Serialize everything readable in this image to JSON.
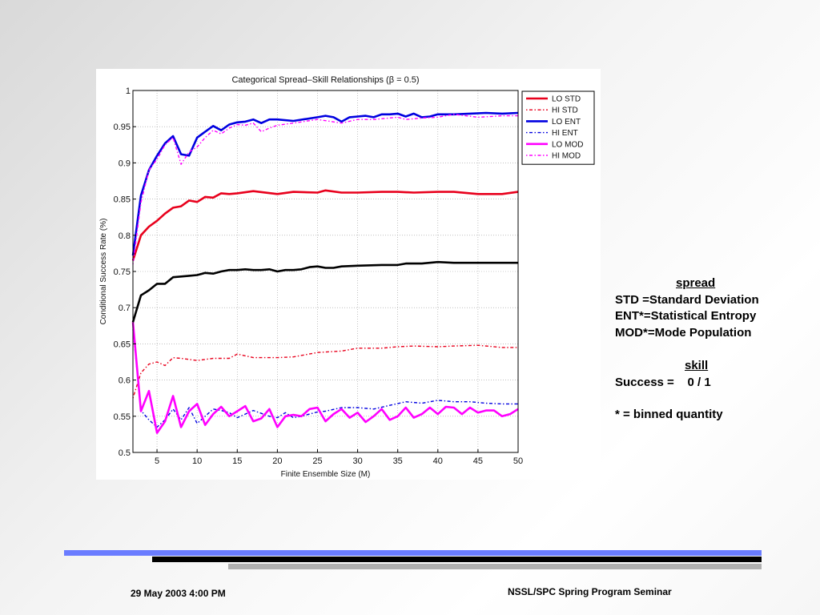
{
  "chart_data": {
    "type": "line",
    "title": "Categorical Spread–Skill Relationships (β = 0.5)",
    "xlabel": "Finite Ensemble Size (M)",
    "ylabel": "Conditional Success Rate (%)",
    "xlim": [
      2,
      50
    ],
    "ylim": [
      0.5,
      1.0
    ],
    "xticks": [
      5,
      10,
      15,
      20,
      25,
      30,
      35,
      40,
      45,
      50
    ],
    "yticks": [
      0.5,
      0.55,
      0.6,
      0.65,
      0.7,
      0.75,
      0.8,
      0.85,
      0.9,
      0.95,
      1
    ],
    "ytick_labels": [
      "0.5",
      "0.55",
      "0.6",
      "0.65",
      "0.7",
      "0.75",
      "0.8",
      "0.85",
      "0.9",
      "0.95",
      "1"
    ],
    "grid": true,
    "legend_position": "outside-right-top",
    "legend": [
      {
        "label": "LO STD",
        "color": "#e8001c",
        "style": "solid"
      },
      {
        "label": "HI STD",
        "color": "#e8001c",
        "style": "dashdot"
      },
      {
        "label": "LO ENT",
        "color": "#0000e0",
        "style": "solid"
      },
      {
        "label": "HI ENT",
        "color": "#0000e0",
        "style": "dashdot"
      },
      {
        "label": "LO MOD",
        "color": "#ff00ff",
        "style": "solid"
      },
      {
        "label": "HI MOD",
        "color": "#ff00ff",
        "style": "dashdot"
      }
    ],
    "series": [
      {
        "color": "#e8001c",
        "style": "solid",
        "x": [
          2,
          3,
          4,
          5,
          6,
          7,
          8,
          9,
          10,
          11,
          12,
          13,
          14,
          15,
          17,
          20,
          22,
          25,
          26,
          28,
          30,
          33,
          35,
          37,
          40,
          42,
          45,
          48,
          50
        ],
        "y": [
          0.765,
          0.8,
          0.812,
          0.82,
          0.83,
          0.838,
          0.84,
          0.848,
          0.846,
          0.853,
          0.852,
          0.858,
          0.857,
          0.858,
          0.861,
          0.857,
          0.86,
          0.859,
          0.862,
          0.859,
          0.859,
          0.86,
          0.86,
          0.859,
          0.86,
          0.86,
          0.857,
          0.857,
          0.86
        ]
      },
      {
        "color": "#e8001c",
        "style": "dashdot",
        "x": [
          2,
          3,
          4,
          5,
          6,
          7,
          8,
          10,
          12,
          14,
          15,
          17,
          20,
          22,
          25,
          28,
          30,
          33,
          35,
          37,
          40,
          42,
          45,
          48,
          50
        ],
        "y": [
          0.575,
          0.61,
          0.622,
          0.625,
          0.62,
          0.631,
          0.63,
          0.627,
          0.63,
          0.63,
          0.636,
          0.631,
          0.631,
          0.632,
          0.638,
          0.64,
          0.644,
          0.644,
          0.646,
          0.647,
          0.646,
          0.647,
          0.648,
          0.645,
          0.645
        ]
      },
      {
        "color": "#0000e0",
        "style": "solid",
        "x": [
          2,
          3,
          4,
          5,
          6,
          7,
          8,
          9,
          10,
          11,
          12,
          13,
          14,
          15,
          16,
          17,
          18,
          19,
          20,
          22,
          25,
          26,
          27,
          28,
          29,
          30,
          31,
          32,
          33,
          34,
          35,
          36,
          37,
          38,
          39,
          40,
          42,
          44,
          46,
          48,
          50
        ],
        "y": [
          0.772,
          0.855,
          0.89,
          0.91,
          0.927,
          0.937,
          0.912,
          0.91,
          0.935,
          0.943,
          0.951,
          0.945,
          0.953,
          0.956,
          0.957,
          0.96,
          0.955,
          0.96,
          0.96,
          0.958,
          0.963,
          0.965,
          0.963,
          0.957,
          0.963,
          0.964,
          0.965,
          0.963,
          0.967,
          0.967,
          0.968,
          0.964,
          0.968,
          0.963,
          0.964,
          0.967,
          0.967,
          0.968,
          0.969,
          0.968,
          0.969
        ]
      },
      {
        "color": "#0000e0",
        "style": "dashdot",
        "x": [
          2,
          3,
          4,
          5,
          6,
          7,
          8,
          9,
          10,
          11,
          12,
          13,
          14,
          15,
          17,
          19,
          20,
          21,
          22,
          23,
          25,
          26,
          28,
          30,
          32,
          34,
          36,
          38,
          40,
          42,
          44,
          46,
          48,
          50
        ],
        "y": [
          0.67,
          0.558,
          0.545,
          0.535,
          0.545,
          0.56,
          0.545,
          0.562,
          0.54,
          0.55,
          0.56,
          0.558,
          0.555,
          0.548,
          0.558,
          0.55,
          0.548,
          0.555,
          0.548,
          0.55,
          0.556,
          0.557,
          0.562,
          0.562,
          0.56,
          0.565,
          0.57,
          0.568,
          0.572,
          0.57,
          0.57,
          0.568,
          0.567,
          0.567
        ]
      },
      {
        "color": "#ff00ff",
        "style": "solid",
        "x": [
          2,
          3,
          4,
          5,
          6,
          7,
          8,
          9,
          10,
          11,
          12,
          13,
          14,
          15,
          16,
          17,
          18,
          19,
          20,
          21,
          22,
          23,
          24,
          25,
          26,
          27,
          28,
          29,
          30,
          31,
          32,
          33,
          34,
          35,
          36,
          37,
          38,
          39,
          40,
          41,
          42,
          43,
          44,
          45,
          46,
          47,
          48,
          49,
          50
        ],
        "y": [
          0.68,
          0.557,
          0.585,
          0.527,
          0.543,
          0.578,
          0.535,
          0.557,
          0.567,
          0.538,
          0.553,
          0.563,
          0.55,
          0.557,
          0.564,
          0.543,
          0.547,
          0.56,
          0.535,
          0.55,
          0.552,
          0.55,
          0.56,
          0.562,
          0.543,
          0.553,
          0.56,
          0.548,
          0.555,
          0.542,
          0.55,
          0.56,
          0.545,
          0.55,
          0.562,
          0.548,
          0.553,
          0.562,
          0.553,
          0.563,
          0.562,
          0.553,
          0.562,
          0.555,
          0.558,
          0.558,
          0.55,
          0.553,
          0.56
        ]
      },
      {
        "color": "#ff00ff",
        "style": "dashdot",
        "x": [
          2,
          3,
          4,
          5,
          6,
          7,
          8,
          9,
          10,
          11,
          12,
          13,
          14,
          15,
          16,
          17,
          18,
          19,
          20,
          22,
          25,
          28,
          30,
          32,
          35,
          36,
          38,
          40,
          42,
          45,
          48,
          50
        ],
        "y": [
          0.76,
          0.845,
          0.89,
          0.905,
          0.925,
          0.935,
          0.898,
          0.915,
          0.922,
          0.935,
          0.945,
          0.94,
          0.948,
          0.953,
          0.952,
          0.955,
          0.943,
          0.948,
          0.952,
          0.955,
          0.96,
          0.955,
          0.96,
          0.96,
          0.963,
          0.96,
          0.962,
          0.963,
          0.967,
          0.963,
          0.965,
          0.965
        ]
      },
      {
        "color": "#000000",
        "style": "solid",
        "x": [
          2,
          3,
          4,
          5,
          6,
          7,
          8,
          9,
          10,
          11,
          12,
          13,
          14,
          15,
          16,
          17,
          18,
          19,
          20,
          21,
          22,
          23,
          24,
          25,
          26,
          27,
          28,
          30,
          33,
          35,
          36,
          38,
          40,
          42,
          45,
          48,
          50
        ],
        "y": [
          0.68,
          0.717,
          0.724,
          0.733,
          0.733,
          0.742,
          0.743,
          0.744,
          0.745,
          0.748,
          0.747,
          0.75,
          0.752,
          0.752,
          0.753,
          0.752,
          0.752,
          0.753,
          0.75,
          0.752,
          0.752,
          0.753,
          0.756,
          0.757,
          0.755,
          0.755,
          0.757,
          0.758,
          0.759,
          0.759,
          0.761,
          0.761,
          0.763,
          0.762,
          0.762,
          0.762,
          0.762
        ]
      }
    ]
  },
  "notes": {
    "spread_header": "spread",
    "std_line": "STD =Standard Deviation",
    "ent_line": "ENT*=Statistical Entropy",
    "mod_line": "MOD*=Mode Population",
    "skill_header": "skill",
    "success_line": "Success =    0 / 1",
    "binned_line": "* = binned quantity"
  },
  "footer": {
    "date": "29 May 2003 4:00 PM",
    "seminar": "NSSL/SPC Spring Program Seminar"
  },
  "colors": {
    "band_blue": "#6a7cff",
    "band_black": "#000000",
    "band_gray": "#b0b0b0"
  }
}
